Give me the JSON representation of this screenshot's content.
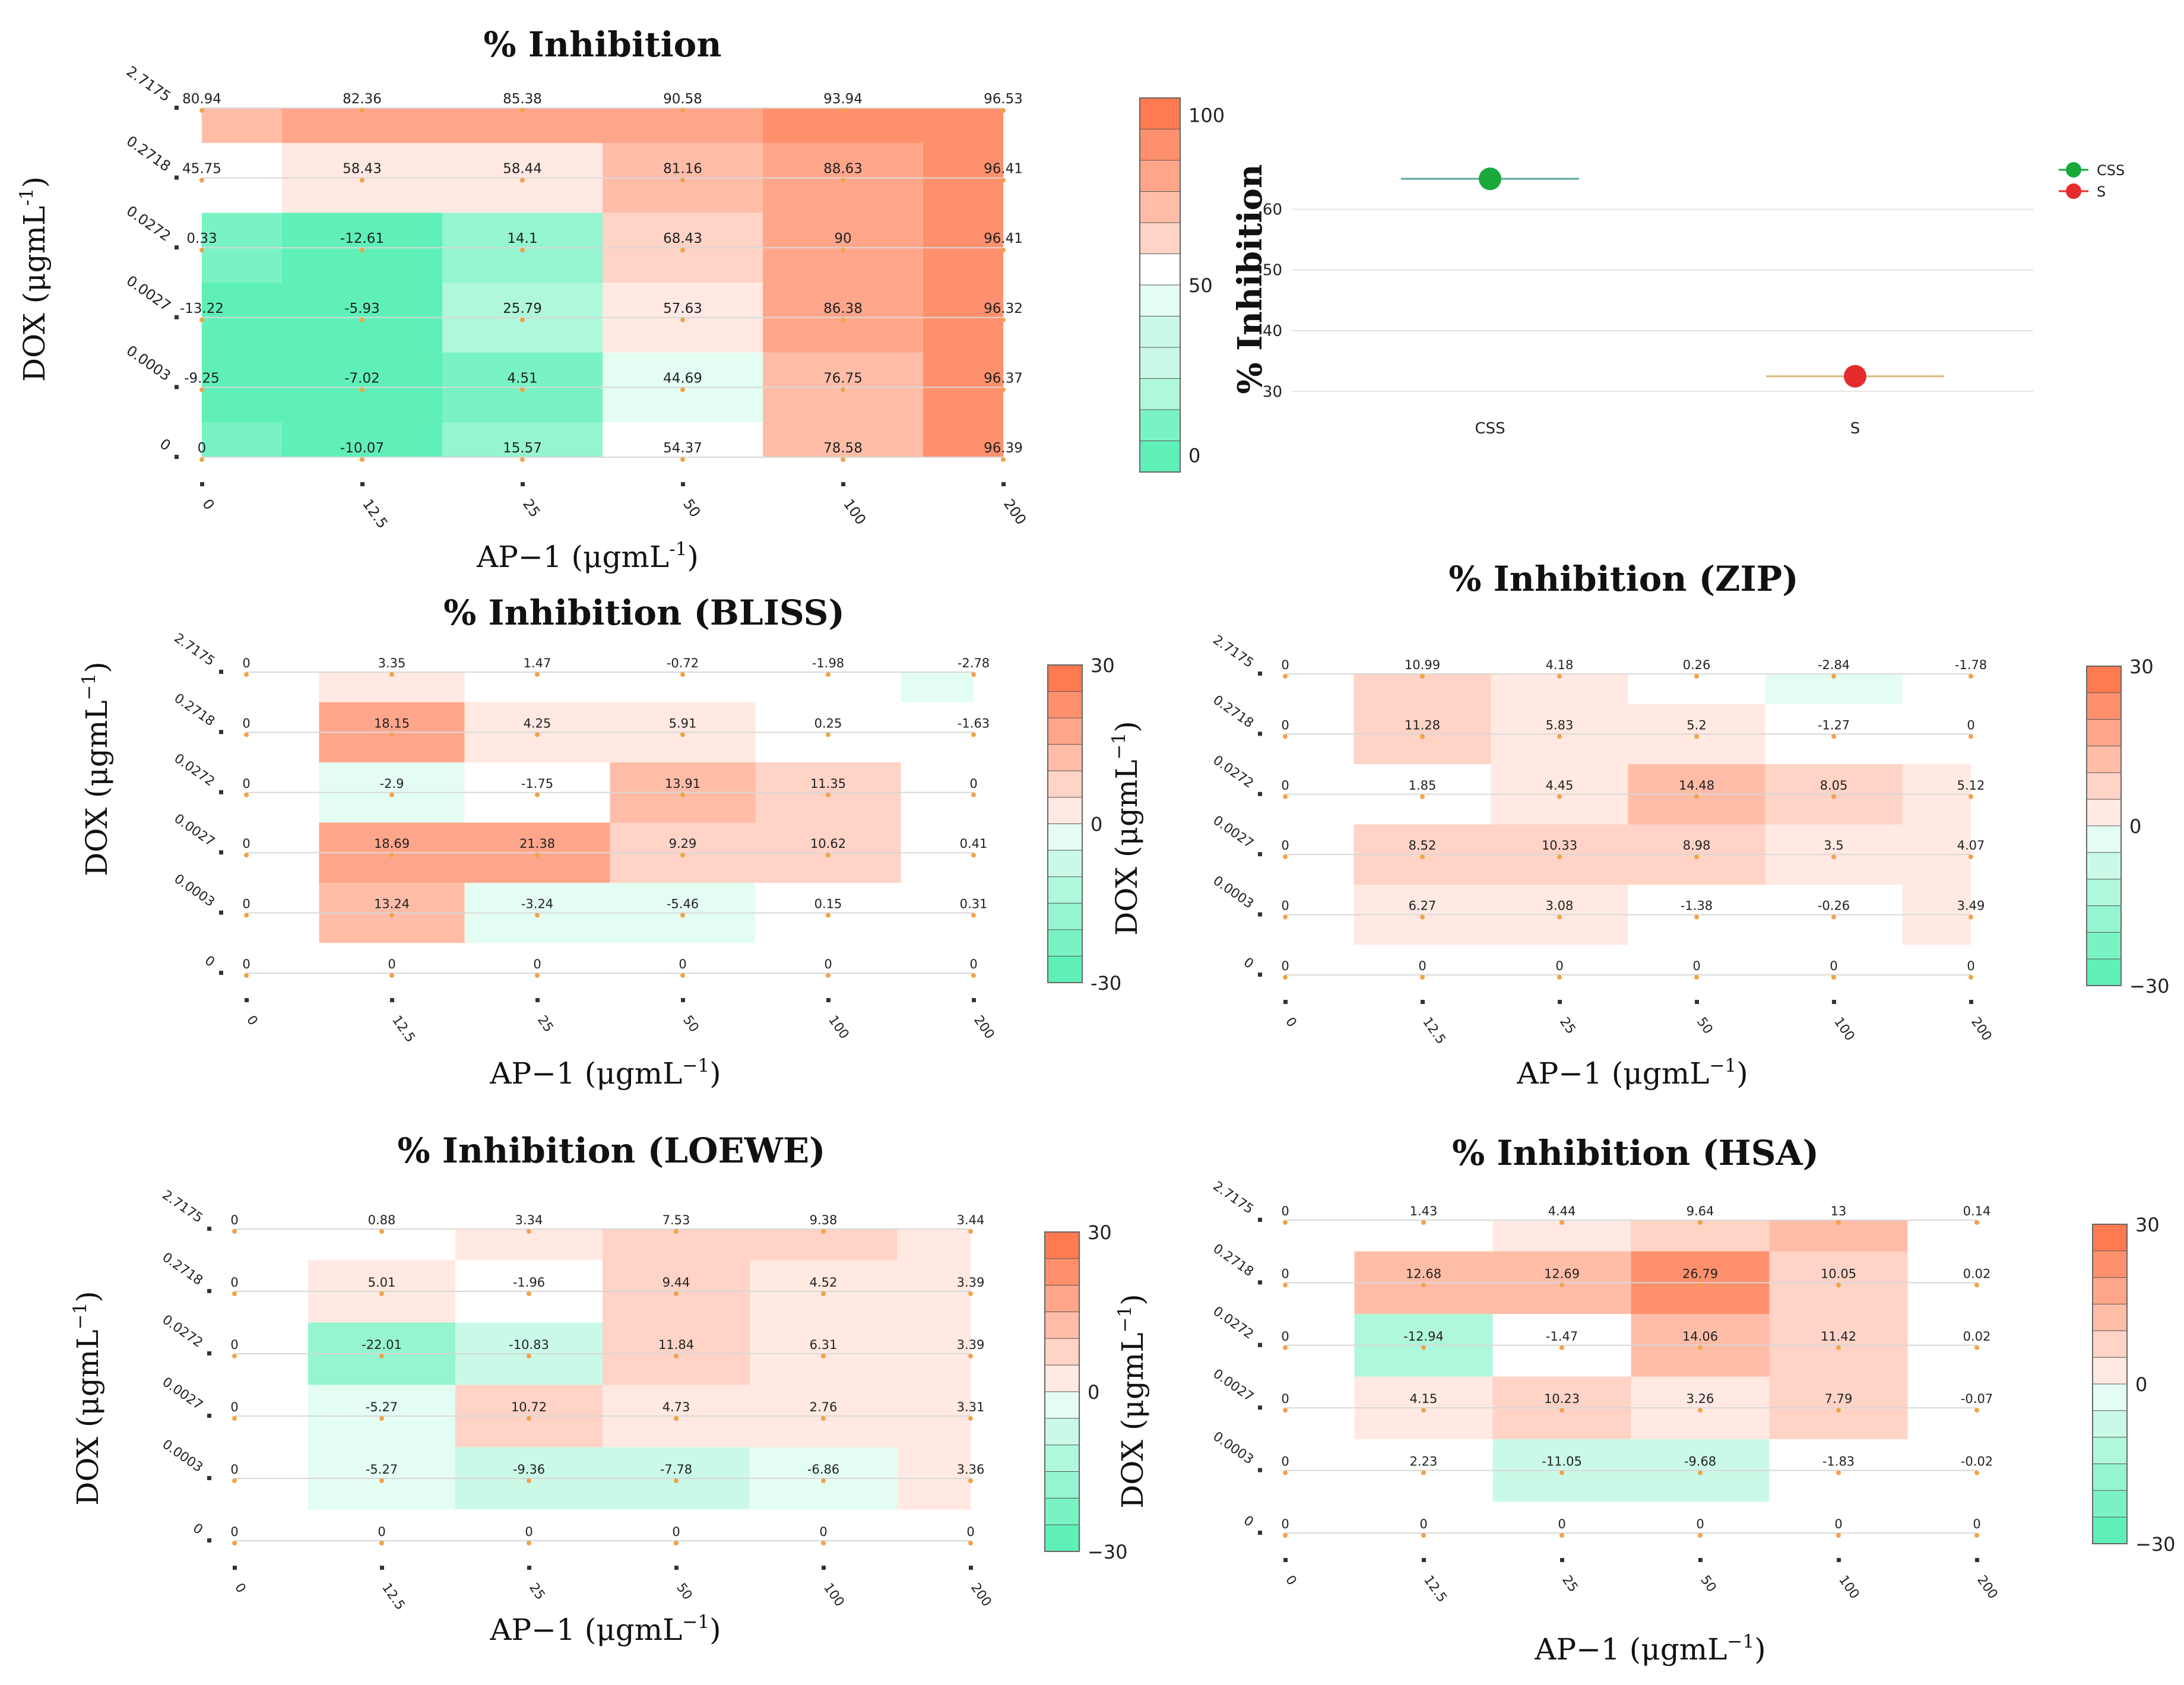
{
  "colors": {
    "neg": "#5ff0b8",
    "zero": "#ffffff",
    "pos": "#ff7a50",
    "grid": "#d8d8d8",
    "dot": "#f2a24a",
    "css": "#19a83a",
    "s": "#e52b2b",
    "css_line": "#5aa6a6",
    "s_line": "#d9b87a"
  },
  "chart_data": [
    {
      "type": "heatmap",
      "title": "% Inhibition",
      "xlabel_main": "AP−1 (μgmL",
      "xlabel_sup": "-1",
      "xlabel_tail": ")",
      "ylabel_main": "DOX (μgmL",
      "ylabel_sup": "-1",
      "ylabel_tail": ")",
      "x_ticks": [
        "0",
        "12.5",
        "25",
        "50",
        "100",
        "200"
      ],
      "y_ticks": [
        "2.7175",
        "0.2718",
        "0.0272",
        "0.0027",
        "0.0003",
        "0"
      ],
      "values": [
        [
          80.94,
          82.36,
          85.38,
          90.58,
          93.94,
          96.53
        ],
        [
          45.75,
          58.43,
          58.44,
          81.16,
          88.63,
          96.41
        ],
        [
          0.33,
          -12.61,
          14.1,
          68.43,
          90,
          96.41
        ],
        [
          -13.22,
          -5.93,
          25.79,
          57.63,
          86.38,
          96.32
        ],
        [
          -9.25,
          -7.02,
          4.51,
          44.69,
          76.75,
          96.37
        ],
        [
          0,
          -10.07,
          15.57,
          54.37,
          78.58,
          96.39
        ]
      ],
      "colorbar": {
        "min": -5,
        "max": 105,
        "mid": 50,
        "ticks": [
          "100",
          "50",
          "0"
        ],
        "tick_values": [
          100,
          50,
          0
        ]
      }
    },
    {
      "type": "scatter",
      "ylabel": "% Inhibition",
      "categories": [
        "CSS",
        "S"
      ],
      "y_values": [
        65,
        32.5
      ],
      "y_ticks": [
        "60",
        "50",
        "40",
        "30"
      ],
      "y_tick_values": [
        60,
        50,
        40,
        30
      ],
      "ylim": [
        27,
        70
      ],
      "legend": [
        "CSS",
        "S"
      ],
      "legend_position": "top-right"
    },
    {
      "type": "heatmap",
      "title": "% Inhibition (BLISS)",
      "xlabel_main": "AP−1 (μgmL",
      "xlabel_sup": "−1",
      "xlabel_tail": ")",
      "ylabel_main": "DOX (μgmL",
      "ylabel_sup": "−1",
      "ylabel_tail": ")",
      "x_ticks": [
        "0",
        "12.5",
        "25",
        "50",
        "100",
        "200"
      ],
      "y_ticks": [
        "2.7175",
        "0.2718",
        "0.0272",
        "0.0027",
        "0.0003",
        "0"
      ],
      "values": [
        [
          0,
          3.35,
          1.47,
          -0.72,
          -1.98,
          -2.78
        ],
        [
          0,
          18.15,
          4.25,
          5.91,
          0.25,
          -1.63
        ],
        [
          0,
          -2.9,
          -1.75,
          13.91,
          11.35,
          0
        ],
        [
          0,
          18.69,
          21.38,
          9.29,
          10.62,
          0.41
        ],
        [
          0,
          13.24,
          -3.24,
          -5.46,
          0.15,
          0.31
        ],
        [
          0,
          0,
          0,
          0,
          0,
          0
        ]
      ],
      "colorbar": {
        "min": -30,
        "max": 30,
        "mid": 0,
        "ticks": [
          "30",
          "0",
          "-30"
        ],
        "tick_values": [
          30,
          0,
          -30
        ]
      }
    },
    {
      "type": "heatmap",
      "title": "% Inhibition (ZIP)",
      "xlabel_main": "AP−1 (μgmL",
      "xlabel_sup": "−1",
      "xlabel_tail": ")",
      "ylabel_main": "DOX (μgmL",
      "ylabel_sup": "−1",
      "ylabel_tail": ")",
      "x_ticks": [
        "0",
        "12.5",
        "25",
        "50",
        "100",
        "200"
      ],
      "y_ticks": [
        "2.7175",
        "0.2718",
        "0.0272",
        "0.0027",
        "0.0003",
        "0"
      ],
      "values": [
        [
          0,
          10.99,
          4.18,
          0.26,
          -2.84,
          -1.78
        ],
        [
          0,
          11.28,
          5.83,
          5.2,
          -1.27,
          0
        ],
        [
          0,
          1.85,
          4.45,
          14.48,
          8.05,
          5.12
        ],
        [
          0,
          8.52,
          10.33,
          8.98,
          3.5,
          4.07
        ],
        [
          0,
          6.27,
          3.08,
          -1.38,
          -0.26,
          3.49
        ],
        [
          0,
          0,
          0,
          0,
          0,
          0
        ]
      ],
      "colorbar": {
        "min": -30,
        "max": 30,
        "mid": 0,
        "ticks": [
          "30",
          "0",
          "−30"
        ],
        "tick_values": [
          30,
          0,
          -30
        ]
      }
    },
    {
      "type": "heatmap",
      "title": "% Inhibition (LOEWE)",
      "xlabel_main": "AP−1 (μgmL",
      "xlabel_sup": "−1",
      "xlabel_tail": ")",
      "ylabel_main": "DOX (μgmL",
      "ylabel_sup": "−1",
      "ylabel_tail": ")",
      "x_ticks": [
        "0",
        "12.5",
        "25",
        "50",
        "100",
        "200"
      ],
      "y_ticks": [
        "2.7175",
        "0.2718",
        "0.0272",
        "0.0027",
        "0.0003",
        "0"
      ],
      "values": [
        [
          0,
          0.88,
          3.34,
          7.53,
          9.38,
          3.44
        ],
        [
          0,
          5.01,
          -1.96,
          9.44,
          4.52,
          3.39
        ],
        [
          0,
          -22.01,
          -10.83,
          11.84,
          6.31,
          3.39
        ],
        [
          0,
          -5.27,
          10.72,
          4.73,
          2.76,
          3.31
        ],
        [
          0,
          -5.27,
          -9.36,
          -7.78,
          -6.86,
          3.36
        ],
        [
          0,
          0,
          0,
          0,
          0,
          0
        ]
      ],
      "colorbar": {
        "min": -30,
        "max": 30,
        "mid": 0,
        "ticks": [
          "30",
          "0",
          "−30"
        ],
        "tick_values": [
          30,
          0,
          -30
        ]
      }
    },
    {
      "type": "heatmap",
      "title": "% Inhibition (HSA)",
      "xlabel_main": "AP−1 (μgmL",
      "xlabel_sup": "−1",
      "xlabel_tail": ")",
      "ylabel_main": "DOX (μgmL",
      "ylabel_sup": "−1",
      "ylabel_tail": ")",
      "x_ticks": [
        "0",
        "12.5",
        "25",
        "50",
        "100",
        "200"
      ],
      "y_ticks": [
        "2.7175",
        "0.2718",
        "0.0272",
        "0.0027",
        "0.0003",
        "0"
      ],
      "values": [
        [
          0,
          1.43,
          4.44,
          9.64,
          13,
          0.14
        ],
        [
          0,
          12.68,
          12.69,
          26.79,
          10.05,
          0.02
        ],
        [
          0,
          -12.94,
          -1.47,
          14.06,
          11.42,
          0.02
        ],
        [
          0,
          4.15,
          10.23,
          3.26,
          7.79,
          -0.07
        ],
        [
          0,
          2.23,
          -11.05,
          -9.68,
          -1.83,
          -0.02
        ],
        [
          0,
          0,
          0,
          0,
          0,
          0
        ]
      ],
      "colorbar": {
        "min": -30,
        "max": 30,
        "mid": 0,
        "ticks": [
          "30",
          "0",
          "−30"
        ],
        "tick_values": [
          30,
          0,
          -30
        ]
      }
    }
  ]
}
